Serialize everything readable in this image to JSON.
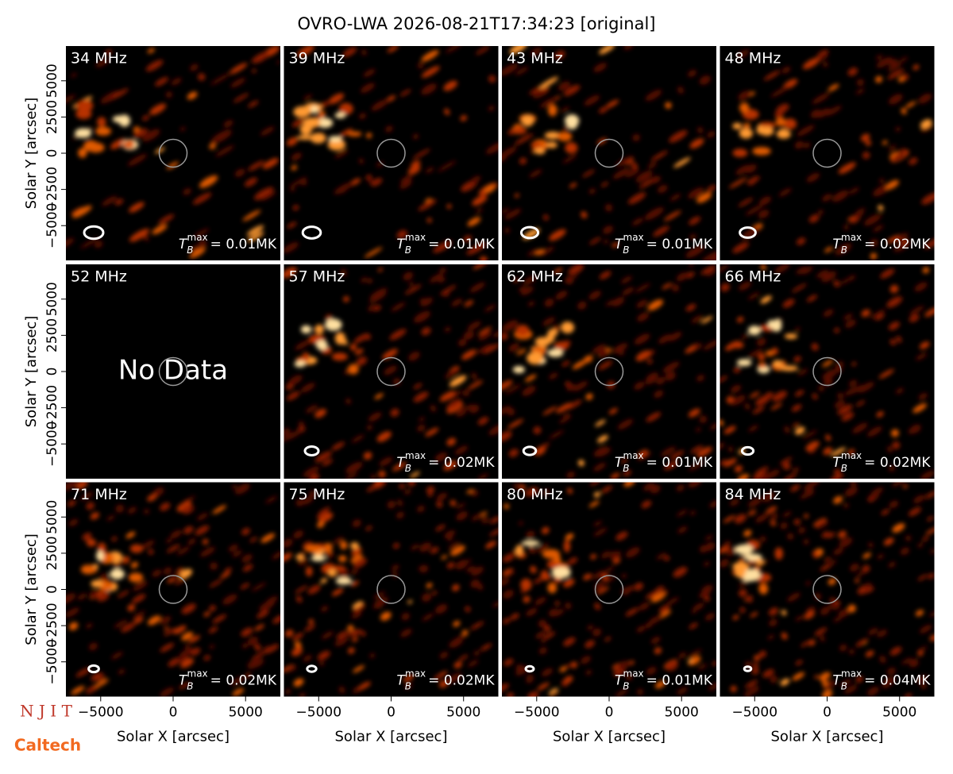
{
  "title": "OVRO-LWA 2026-08-21T17:34:23 [original]",
  "xlabel": "Solar X [arcsec]",
  "ylabel": "Solar Y [arcsec]",
  "xlim": [
    -7400,
    7400
  ],
  "ylim": [
    -7400,
    7400
  ],
  "xticks": [
    {
      "value": -5000,
      "label": "−5000"
    },
    0,
    5000
  ],
  "yticks": [
    {
      "value": -5000,
      "label": "−5000"
    },
    {
      "value": -2500,
      "label": "−2500"
    },
    0,
    2500,
    5000
  ],
  "tmax_symbol": "T",
  "tmax_sub": "B",
  "tmax_sup": "max",
  "no_data": "No Data",
  "logos": [
    "N J I T",
    "Caltech"
  ],
  "panels": [
    {
      "label": "34 MHz",
      "tmax": "= 0.01MK"
    },
    {
      "label": "39 MHz",
      "tmax": "= 0.01MK"
    },
    {
      "label": "43 MHz",
      "tmax": "= 0.01MK"
    },
    {
      "label": "48 MHz",
      "tmax": "= 0.02MK"
    },
    {
      "label": "52 MHz",
      "tmax": null
    },
    {
      "label": "57 MHz",
      "tmax": "= 0.02MK"
    },
    {
      "label": "62 MHz",
      "tmax": "= 0.01MK"
    },
    {
      "label": "66 MHz",
      "tmax": "= 0.02MK"
    },
    {
      "label": "71 MHz",
      "tmax": "= 0.02MK"
    },
    {
      "label": "75 MHz",
      "tmax": "= 0.02MK"
    },
    {
      "label": "80 MHz",
      "tmax": "= 0.01MK"
    },
    {
      "label": "84 MHz",
      "tmax": "= 0.04MK"
    }
  ]
}
